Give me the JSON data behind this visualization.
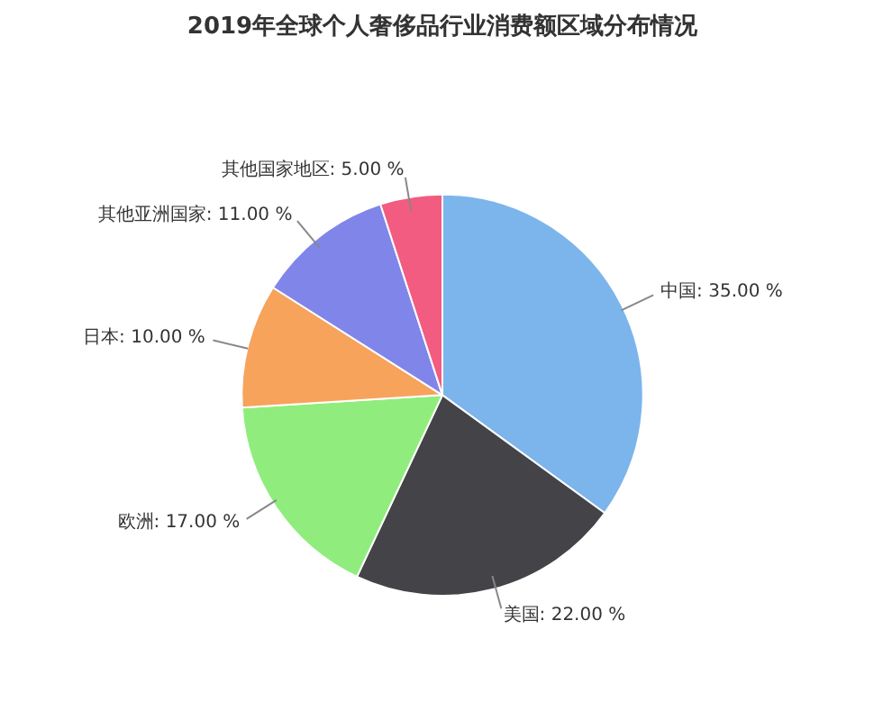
{
  "chart_data": {
    "type": "pie",
    "title": "2019年全球个人奢侈品行业消费额区域分布情况",
    "categories": [
      "中国",
      "美国",
      "欧洲",
      "日本",
      "其他亚洲国家",
      "其他国家地区"
    ],
    "values": [
      35,
      22,
      17,
      10,
      11,
      5
    ],
    "colors": [
      "#7cb5ec",
      "#434348",
      "#90ed7d",
      "#f7a35c",
      "#8085e9",
      "#f15c80"
    ],
    "value_labels": [
      "35.00 %",
      "22.00 %",
      "17.00 %",
      "10.00 %",
      "11.00 %",
      "5.00 %"
    ],
    "legend": false
  }
}
